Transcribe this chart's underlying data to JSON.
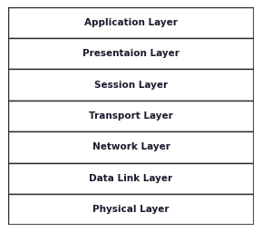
{
  "layers": [
    "Application Layer",
    "Presentaion Layer",
    "Session Layer",
    "Transport Layer",
    "Network Layer",
    "Data Link Layer",
    "Physical Layer"
  ],
  "bg_color": "#ffffff",
  "text_color": "#1a1a2e",
  "border_color": "#2b2b2b",
  "font_size": 7.5,
  "outer_border_lw": 1.2,
  "inner_border_lw": 1.0,
  "fig_width": 2.89,
  "fig_height": 2.56,
  "dpi": 100
}
